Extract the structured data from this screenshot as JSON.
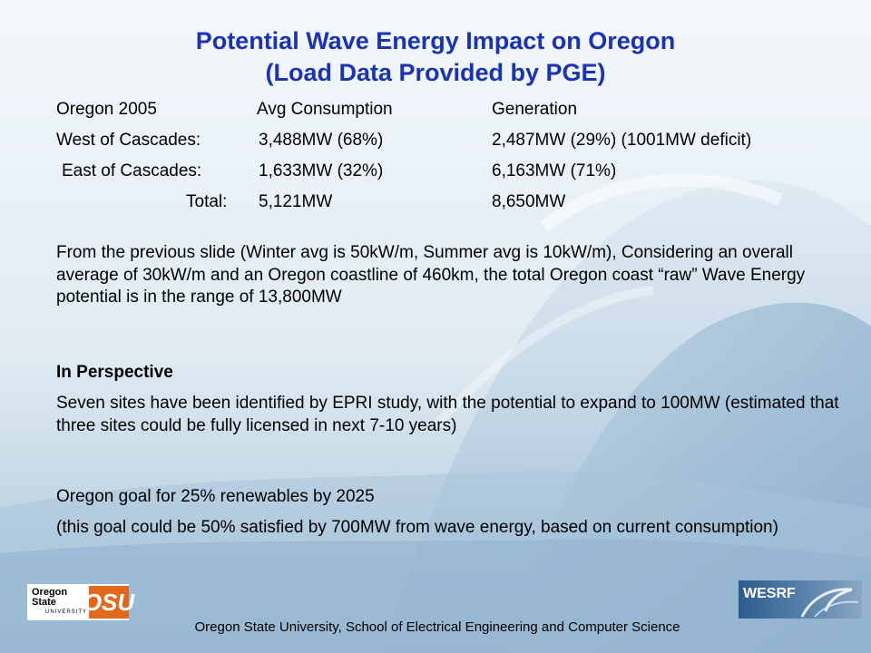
{
  "title": {
    "line1": "Potential Wave Energy Impact on Oregon",
    "line2": "(Load Data Provided by PGE)"
  },
  "table": {
    "header": {
      "label": "Oregon 2005",
      "consumption": "Avg Consumption",
      "generation": "Generation"
    },
    "rows": [
      {
        "label": "West of Cascades:",
        "consumption": "3,488MW (68%)",
        "generation": "2,487MW (29%) (1001MW deficit)"
      },
      {
        "label": "East of Cascades:",
        "consumption": "1,633MW (32%)",
        "generation": "6,163MW (71%)"
      },
      {
        "label": "Total:",
        "consumption": "5,121MW",
        "generation": "8,650MW"
      }
    ]
  },
  "paragraphs": {
    "potential": "From the previous slide (Winter avg is 50kW/m, Summer avg is 10kW/m), Considering an overall average of 30kW/m and an Oregon coastline of 460km, the total Oregon coast “raw” Wave Energy potential is in the range of 13,800MW",
    "perspective_heading": "In Perspective",
    "epri": "Seven sites have been identified by EPRI study, with the potential to expand to 100MW (estimated that three sites could be fully licensed in next 7-10 years)",
    "goal": "Oregon goal for 25% renewables by 2025",
    "goal_detail": "(this goal could be 50% satisfied by 700MW from wave energy, based on current consumption)"
  },
  "logos": {
    "osu_word": "Oregon State",
    "osu_sub": "UNIVERSITY",
    "osu_mark": "OSU",
    "wesrf": "WESRF"
  },
  "footer": "Oregon State University, School of Electrical Engineering and Computer Science",
  "colors": {
    "title": "#1a33b3",
    "osu_orange": "#e06a1a",
    "wesrf_blue": "#2a5d8e"
  }
}
